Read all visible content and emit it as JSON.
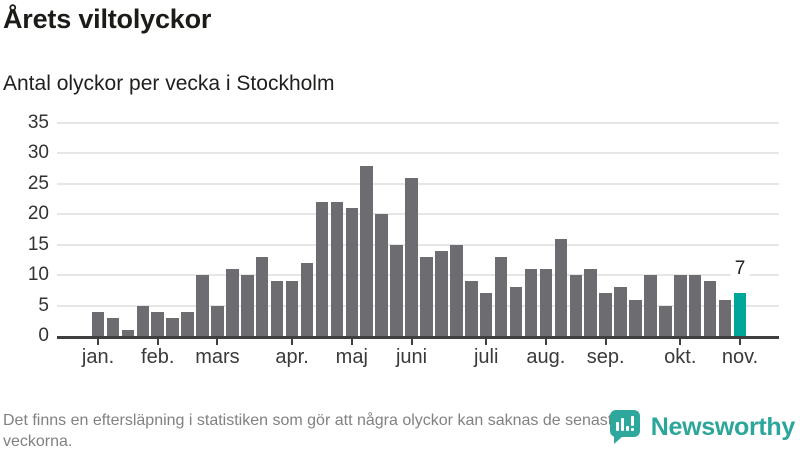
{
  "header": {
    "title": "Årets viltolyckor",
    "subtitle": "Antal olyckor per vecka i Stockholm"
  },
  "chart_data": {
    "type": "bar",
    "title": "Årets viltolyckor",
    "subtitle": "Antal olyckor per vecka i Stockholm",
    "x_unit": "week",
    "values": [
      4,
      3,
      1,
      5,
      4,
      3,
      4,
      10,
      5,
      11,
      10,
      13,
      9,
      9,
      12,
      22,
      22,
      21,
      28,
      20,
      15,
      26,
      13,
      14,
      15,
      9,
      7,
      13,
      8,
      11,
      11,
      16,
      10,
      11,
      7,
      8,
      6,
      10,
      5,
      10,
      10,
      9,
      6,
      7
    ],
    "month_ticks": [
      {
        "label": "jan.",
        "bar_index": 0
      },
      {
        "label": "feb.",
        "bar_index": 4
      },
      {
        "label": "mars",
        "bar_index": 8
      },
      {
        "label": "apr.",
        "bar_index": 13
      },
      {
        "label": "maj",
        "bar_index": 17
      },
      {
        "label": "juni",
        "bar_index": 21
      },
      {
        "label": "juli",
        "bar_index": 26
      },
      {
        "label": "aug.",
        "bar_index": 30
      },
      {
        "label": "sep.",
        "bar_index": 34
      },
      {
        "label": "okt.",
        "bar_index": 39
      },
      {
        "label": "nov.",
        "bar_index": 43
      }
    ],
    "yticks": [
      0,
      5,
      10,
      15,
      20,
      25,
      30,
      35
    ],
    "ylim": [
      0,
      35
    ],
    "grid": "horizontal",
    "legend": "none",
    "annotation": {
      "text": "7",
      "bar_index": 43
    },
    "highlight_last_bar": true,
    "colors": {
      "bar": "#6c6c71",
      "highlight": "#00a69a",
      "gridline": "#e6e6e6",
      "axis": "#3f3f42"
    }
  },
  "footer": {
    "note": "Det finns en eftersläpning i statistiken som gör att några olyckor kan saknas de senaste veckorna."
  },
  "logo": {
    "name": "Newsworthy"
  }
}
